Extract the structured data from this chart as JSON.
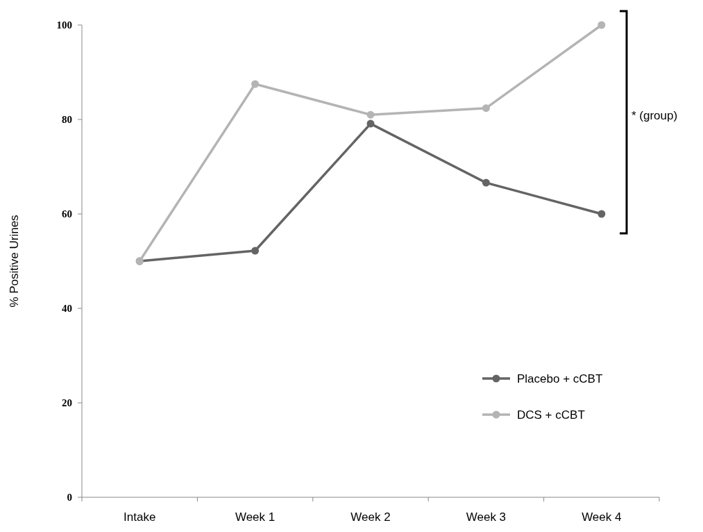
{
  "chart_data": {
    "type": "line",
    "ylabel": "% Positive Urines",
    "categories": [
      "Intake",
      "Week 1",
      "Week 2",
      "Week 3",
      "Week 4"
    ],
    "series": [
      {
        "name": "Placebo + cCBT",
        "color": "#646464",
        "values": [
          50,
          52.2,
          79.1,
          66.6,
          60
        ]
      },
      {
        "name": "DCS + cCBT",
        "color": "#b4b4b4",
        "values": [
          50,
          87.5,
          81,
          82.4,
          100
        ]
      }
    ],
    "ylim": [
      0,
      100
    ],
    "yticks": [
      0,
      20,
      40,
      60,
      80,
      100
    ],
    "grid": false,
    "legend": "bottom right",
    "marker": "circle",
    "line_style": "solid",
    "annotations": [
      "* (group)"
    ]
  }
}
